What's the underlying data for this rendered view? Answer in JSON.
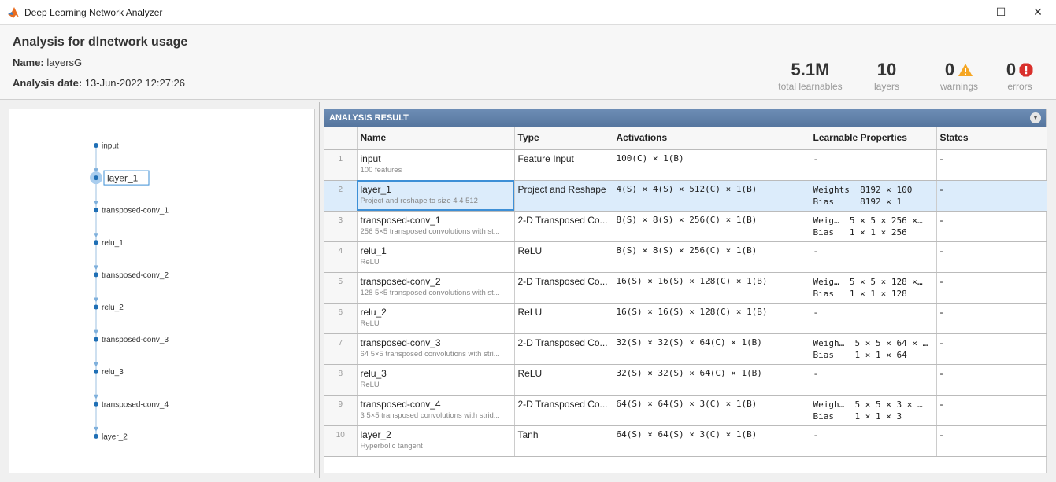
{
  "window": {
    "title": "Deep Learning Network Analyzer",
    "minimize": "—",
    "maximize": "☐",
    "close": "✕"
  },
  "header": {
    "title": "Analysis for dlnetwork usage",
    "name_label": "Name:",
    "name_value": "layersG",
    "date_label": "Analysis date:",
    "date_value": "13-Jun-2022 12:27:26"
  },
  "stats": [
    {
      "value": "5.1M",
      "label": "total learnables"
    },
    {
      "value": "10",
      "label": "layers"
    },
    {
      "value": "0",
      "label": "warnings",
      "icon": "warning-icon",
      "color": "#f5a623"
    },
    {
      "value": "0",
      "label": "errors",
      "icon": "error-icon",
      "color": "#d9302c"
    }
  ],
  "graph": {
    "nodes": [
      "input",
      "layer_1",
      "transposed-conv_1",
      "relu_1",
      "transposed-conv_2",
      "relu_2",
      "transposed-conv_3",
      "relu_3",
      "transposed-conv_4",
      "layer_2"
    ],
    "selected": "layer_1",
    "node_color": "#1f6fb5"
  },
  "result": {
    "title": "ANALYSIS RESULT",
    "columns": [
      "Name",
      "Type",
      "Activations",
      "Learnable Properties",
      "States"
    ],
    "rows": [
      {
        "num": "1",
        "name": "input",
        "desc": "100 features",
        "type": "Feature Input",
        "act": "100(C) × 1(B)",
        "learn": [
          "-"
        ],
        "states": "-"
      },
      {
        "num": "2",
        "name": "layer_1",
        "desc": "Project and reshape to size 4 4 512",
        "type": "Project and Reshape",
        "act": "4(S) × 4(S) × 512(C) × 1(B)",
        "learn": [
          "Weights  8192 × 100",
          "Bias     8192 × 1"
        ],
        "states": "-"
      },
      {
        "num": "3",
        "name": "transposed-conv_1",
        "desc": "256 5×5 transposed convolutions with st...",
        "type": "2-D Transposed Co...",
        "act": "8(S) × 8(S) × 256(C) × 1(B)",
        "learn": [
          "Weig…  5 × 5 × 256 ×…",
          "Bias   1 × 1 × 256"
        ],
        "states": "-"
      },
      {
        "num": "4",
        "name": "relu_1",
        "desc": "ReLU",
        "type": "ReLU",
        "act": "8(S) × 8(S) × 256(C) × 1(B)",
        "learn": [
          "-"
        ],
        "states": "-"
      },
      {
        "num": "5",
        "name": "transposed-conv_2",
        "desc": "128 5×5 transposed convolutions with st...",
        "type": "2-D Transposed Co...",
        "act": "16(S) × 16(S) × 128(C) × 1(B)",
        "learn": [
          "Weig…  5 × 5 × 128 ×…",
          "Bias   1 × 1 × 128"
        ],
        "states": "-"
      },
      {
        "num": "6",
        "name": "relu_2",
        "desc": "ReLU",
        "type": "ReLU",
        "act": "16(S) × 16(S) × 128(C) × 1(B)",
        "learn": [
          "-"
        ],
        "states": "-"
      },
      {
        "num": "7",
        "name": "transposed-conv_3",
        "desc": "64 5×5 transposed convolutions with stri...",
        "type": "2-D Transposed Co...",
        "act": "32(S) × 32(S) × 64(C) × 1(B)",
        "learn": [
          "Weigh…  5 × 5 × 64 × …",
          "Bias    1 × 1 × 64"
        ],
        "states": "-"
      },
      {
        "num": "8",
        "name": "relu_3",
        "desc": "ReLU",
        "type": "ReLU",
        "act": "32(S) × 32(S) × 64(C) × 1(B)",
        "learn": [
          "-"
        ],
        "states": "-"
      },
      {
        "num": "9",
        "name": "transposed-conv_4",
        "desc": "3 5×5 transposed convolutions with strid...",
        "type": "2-D Transposed Co...",
        "act": "64(S) × 64(S) × 3(C) × 1(B)",
        "learn": [
          "Weigh…  5 × 5 × 3 × …",
          "Bias    1 × 1 × 3"
        ],
        "states": "-"
      },
      {
        "num": "10",
        "name": "layer_2",
        "desc": "Hyperbolic tangent",
        "type": "Tanh",
        "act": "64(S) × 64(S) × 3(C) × 1(B)",
        "learn": [
          "-"
        ],
        "states": "-"
      }
    ],
    "selected_row": "2"
  }
}
